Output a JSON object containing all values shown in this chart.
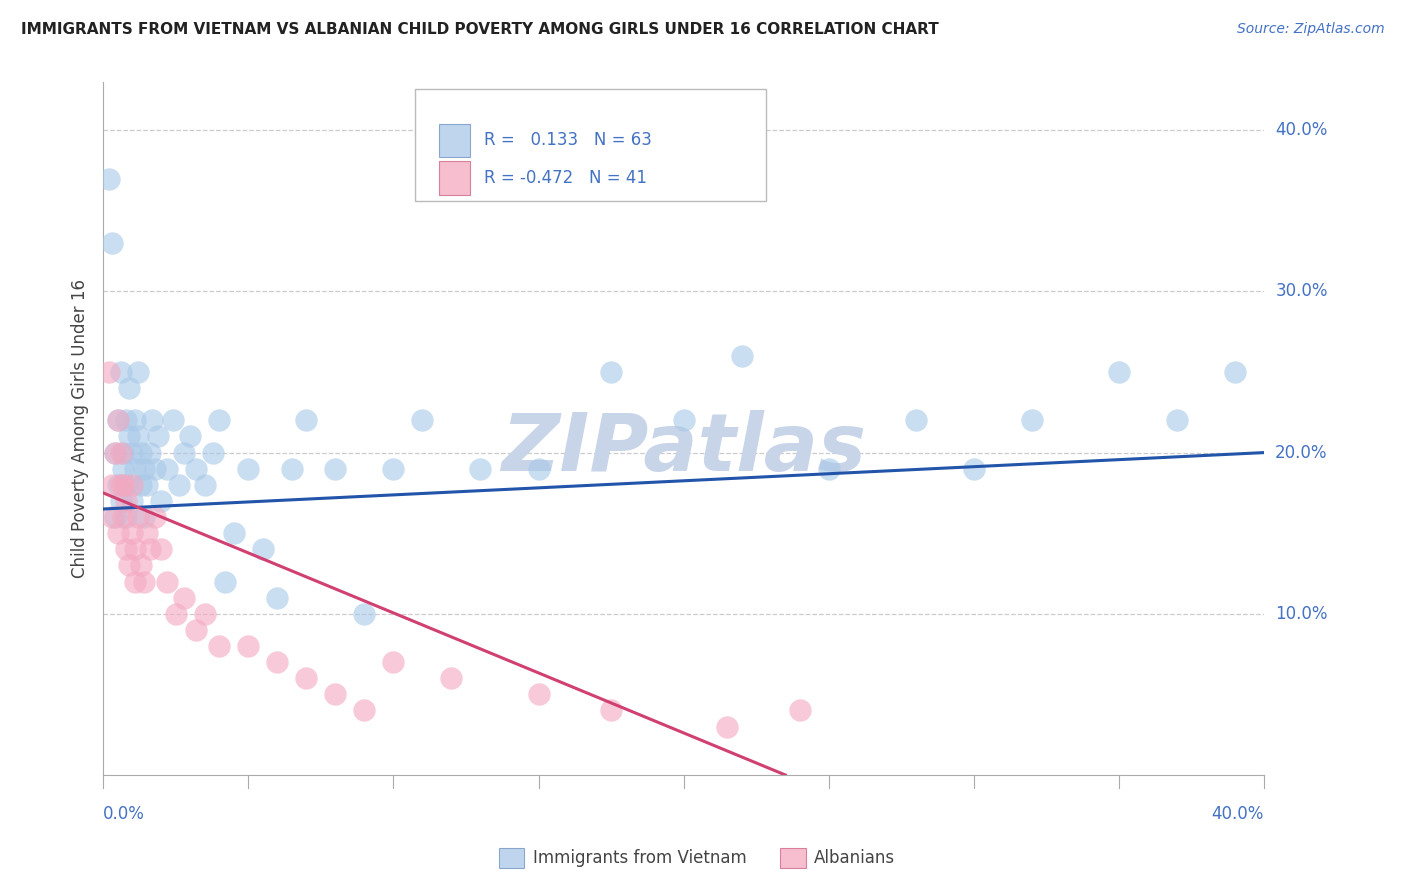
{
  "title": "IMMIGRANTS FROM VIETNAM VS ALBANIAN CHILD POVERTY AMONG GIRLS UNDER 16 CORRELATION CHART",
  "source": "Source: ZipAtlas.com",
  "ylabel": "Child Poverty Among Girls Under 16",
  "xlim": [
    0.0,
    0.4
  ],
  "ylim": [
    0.0,
    0.43
  ],
  "yticks": [
    0.1,
    0.2,
    0.3,
    0.4
  ],
  "ytick_labels": [
    "10.0%",
    "20.0%",
    "30.0%",
    "40.0%"
  ],
  "xtick_labels": [
    "0.0%",
    "40.0%"
  ],
  "vietnam_color": "#a8c8e8",
  "albanian_color": "#f4a8c0",
  "vietnam_line_color": "#2255aa",
  "albanian_line_color": "#d04070",
  "watermark": "ZIPatlas",
  "watermark_color": "#c8d4e8",
  "legend_R1": "0.133",
  "legend_N1": "63",
  "legend_R2": "-0.472",
  "legend_N2": "41",
  "legend_label1": "Immigrants from Vietnam",
  "legend_label2": "Albanians",
  "vietnam_line_x0": 0.0,
  "vietnam_line_y0": 0.165,
  "vietnam_line_x1": 0.4,
  "vietnam_line_y1": 0.2,
  "albanian_line_x0": 0.0,
  "albanian_line_y0": 0.175,
  "albanian_line_x1": 0.235,
  "albanian_line_y1": 0.0,
  "vietnam_scatter_x": [
    0.002,
    0.003,
    0.004,
    0.004,
    0.005,
    0.005,
    0.006,
    0.006,
    0.007,
    0.007,
    0.008,
    0.008,
    0.008,
    0.009,
    0.009,
    0.01,
    0.01,
    0.011,
    0.011,
    0.012,
    0.012,
    0.013,
    0.013,
    0.014,
    0.014,
    0.015,
    0.016,
    0.017,
    0.018,
    0.019,
    0.02,
    0.022,
    0.024,
    0.026,
    0.028,
    0.03,
    0.032,
    0.035,
    0.038,
    0.04,
    0.042,
    0.045,
    0.05,
    0.055,
    0.06,
    0.065,
    0.07,
    0.08,
    0.09,
    0.1,
    0.11,
    0.13,
    0.15,
    0.175,
    0.2,
    0.22,
    0.25,
    0.28,
    0.3,
    0.32,
    0.35,
    0.37,
    0.39
  ],
  "vietnam_scatter_y": [
    0.37,
    0.33,
    0.16,
    0.2,
    0.18,
    0.22,
    0.17,
    0.25,
    0.2,
    0.19,
    0.16,
    0.18,
    0.22,
    0.21,
    0.24,
    0.17,
    0.2,
    0.19,
    0.22,
    0.21,
    0.25,
    0.18,
    0.2,
    0.16,
    0.19,
    0.18,
    0.2,
    0.22,
    0.19,
    0.21,
    0.17,
    0.19,
    0.22,
    0.18,
    0.2,
    0.21,
    0.19,
    0.18,
    0.2,
    0.22,
    0.12,
    0.15,
    0.19,
    0.14,
    0.11,
    0.19,
    0.22,
    0.19,
    0.1,
    0.19,
    0.22,
    0.19,
    0.19,
    0.25,
    0.22,
    0.26,
    0.19,
    0.22,
    0.19,
    0.22,
    0.25,
    0.22,
    0.25
  ],
  "albanian_scatter_x": [
    0.002,
    0.003,
    0.003,
    0.004,
    0.005,
    0.005,
    0.006,
    0.006,
    0.007,
    0.007,
    0.008,
    0.008,
    0.009,
    0.01,
    0.01,
    0.011,
    0.011,
    0.012,
    0.013,
    0.014,
    0.015,
    0.016,
    0.018,
    0.02,
    0.022,
    0.025,
    0.028,
    0.032,
    0.035,
    0.04,
    0.05,
    0.06,
    0.07,
    0.08,
    0.09,
    0.1,
    0.12,
    0.15,
    0.175,
    0.215,
    0.24
  ],
  "albanian_scatter_y": [
    0.25,
    0.16,
    0.18,
    0.2,
    0.15,
    0.22,
    0.18,
    0.2,
    0.16,
    0.18,
    0.14,
    0.17,
    0.13,
    0.15,
    0.18,
    0.12,
    0.14,
    0.16,
    0.13,
    0.12,
    0.15,
    0.14,
    0.16,
    0.14,
    0.12,
    0.1,
    0.11,
    0.09,
    0.1,
    0.08,
    0.08,
    0.07,
    0.06,
    0.05,
    0.04,
    0.07,
    0.06,
    0.05,
    0.04,
    0.03,
    0.04
  ]
}
